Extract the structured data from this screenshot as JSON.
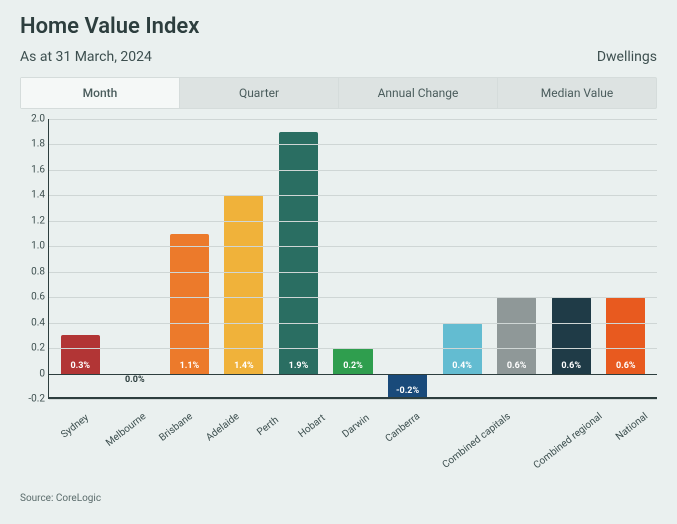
{
  "title": "Home Value Index",
  "subtitle": "As at 31 March, 2024",
  "unit_label": "Dwellings",
  "tabs": [
    {
      "label": "Month",
      "active": true
    },
    {
      "label": "Quarter",
      "active": false
    },
    {
      "label": "Annual Change",
      "active": false
    },
    {
      "label": "Median Value",
      "active": false
    }
  ],
  "chart": {
    "type": "bar",
    "ymin": -0.2,
    "ymax": 2.0,
    "ytick_step": 0.2,
    "grid_color": "#cfd6d5",
    "axis_color": "#2d3e3e",
    "background": "#eaf0ef",
    "yticks": [
      "-0.2",
      "0",
      "0.2",
      "0.4",
      "0.6",
      "0.8",
      "1.0",
      "1.2",
      "1.4",
      "1.6",
      "1.8",
      "2.0"
    ],
    "bars": [
      {
        "category": "Sydney",
        "value": 0.3,
        "label": "0.3%",
        "color": "#b23535",
        "label_color": "#ffffff"
      },
      {
        "category": "Melbourne",
        "value": 0.0,
        "label": "0.0%",
        "color": "#000000",
        "label_color": "#2d3e3e"
      },
      {
        "category": "Brisbane",
        "value": 1.1,
        "label": "1.1%",
        "color": "#ec7a2b",
        "label_color": "#ffffff"
      },
      {
        "category": "Adelaide",
        "value": 1.4,
        "label": "1.4%",
        "color": "#f0b23a",
        "label_color": "#ffffff"
      },
      {
        "category": "Perth",
        "value": 1.9,
        "label": "1.9%",
        "color": "#2a6e62",
        "label_color": "#ffffff"
      },
      {
        "category": "Hobart",
        "value": 0.2,
        "label": "0.2%",
        "color": "#2f9e4e",
        "label_color": "#ffffff"
      },
      {
        "category": "Darwin",
        "value": -0.2,
        "label": "-0.2%",
        "color": "#194a7a",
        "label_color": "#ffffff"
      },
      {
        "category": "Canberra",
        "value": 0.4,
        "label": "0.4%",
        "color": "#63bcd1",
        "label_color": "#ffffff"
      },
      {
        "category": "Combined capitals",
        "value": 0.6,
        "label": "0.6%",
        "color": "#8f9898",
        "label_color": "#ffffff"
      },
      {
        "category": "Combined regional",
        "value": 0.6,
        "label": "0.6%",
        "color": "#1f3b47",
        "label_color": "#ffffff"
      },
      {
        "category": "National",
        "value": 0.6,
        "label": "0.6%",
        "color": "#e85a1f",
        "label_color": "#ffffff"
      }
    ]
  },
  "source": "Source: CoreLogic"
}
